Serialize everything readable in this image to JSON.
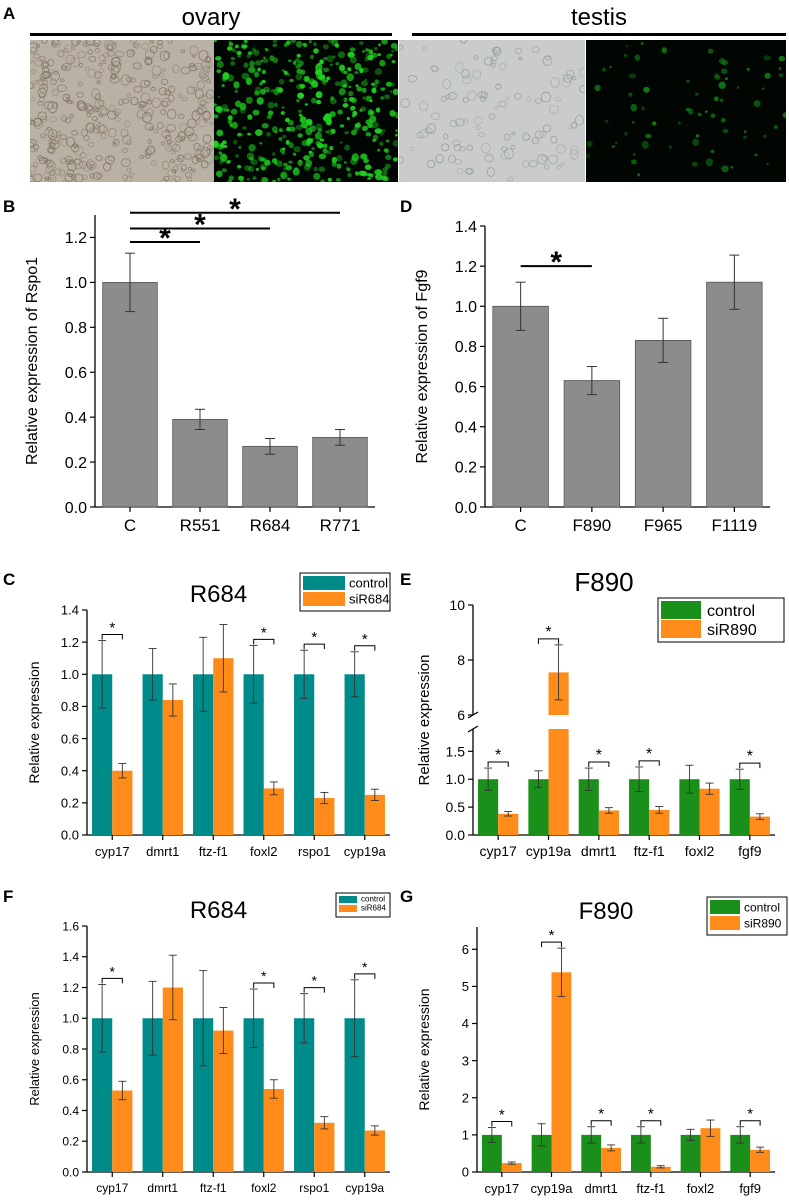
{
  "panel_letters": {
    "A": "A",
    "B": "B",
    "C": "C",
    "D": "D",
    "E": "E",
    "F": "F",
    "G": "G"
  },
  "panel_a": {
    "ovary_label": "ovary",
    "testis_label": "testis",
    "images": [
      {
        "name": "ovary-brightfield",
        "kind": "brightfield",
        "tone": "#b9b1a4"
      },
      {
        "name": "ovary-fluorescence",
        "kind": "fluorescence",
        "tone": "#1fd11f"
      },
      {
        "name": "testis-brightfield",
        "kind": "brightfield",
        "tone": "#c9ccca"
      },
      {
        "name": "testis-fluorescence",
        "kind": "fluorescence",
        "tone": "#0f7a14"
      }
    ]
  },
  "colors": {
    "gray_bar": "#8c8c8c",
    "teal": "#008b8b",
    "orange": "#ff8c1a",
    "green": "#1a8f1a"
  },
  "chart_data": [
    {
      "id": "B",
      "type": "bar",
      "ylabel": "Relative expression of Rspo1",
      "categories": [
        "C",
        "R551",
        "R684",
        "R771"
      ],
      "values": [
        1.0,
        0.39,
        0.27,
        0.31
      ],
      "errors": [
        0.13,
        0.045,
        0.035,
        0.035
      ],
      "ylim": [
        0,
        1.3
      ],
      "yticks": [
        "0.0",
        "0.2",
        "0.4",
        "0.6",
        "0.8",
        "1.0",
        "1.2"
      ],
      "significance": [
        {
          "from": 0,
          "to": 1,
          "level": 1.18,
          "label": "*"
        },
        {
          "from": 0,
          "to": 2,
          "level": 1.24,
          "label": "*"
        },
        {
          "from": 0,
          "to": 3,
          "level": 1.31,
          "label": "*"
        }
      ]
    },
    {
      "id": "D",
      "type": "bar",
      "ylabel": "Relative expression of Fgf9",
      "categories": [
        "C",
        "F890",
        "F965",
        "F1119"
      ],
      "values": [
        1.0,
        0.63,
        0.83,
        1.12
      ],
      "errors": [
        0.12,
        0.07,
        0.11,
        0.135
      ],
      "ylim": [
        0,
        1.4
      ],
      "yticks": [
        "0.0",
        "0.2",
        "0.4",
        "0.6",
        "0.8",
        "1.0",
        "1.2",
        "1.4"
      ],
      "significance": [
        {
          "from": 0,
          "to": 1,
          "level": 1.2,
          "label": "*"
        }
      ]
    },
    {
      "id": "C",
      "type": "grouped-bar",
      "title": "R684",
      "ylabel": "Relative expression",
      "categories": [
        "cyp17",
        "dmrt1",
        "ftz-f1",
        "foxl2",
        "rspo1",
        "cyp19a"
      ],
      "series": [
        {
          "name": "control",
          "values": [
            1.0,
            1.0,
            1.0,
            1.0,
            1.0,
            1.0
          ],
          "errors": [
            0.21,
            0.16,
            0.23,
            0.18,
            0.15,
            0.14
          ]
        },
        {
          "name": "siR684",
          "values": [
            0.4,
            0.84,
            1.1,
            0.29,
            0.23,
            0.25
          ],
          "errors": [
            0.045,
            0.1,
            0.21,
            0.04,
            0.035,
            0.035
          ]
        }
      ],
      "ylim": [
        0,
        1.4
      ],
      "yticks": [
        "0.0",
        "0.2",
        "0.4",
        "0.6",
        "0.8",
        "1.0",
        "1.2",
        "1.4"
      ],
      "stars": [
        0,
        3,
        4,
        5
      ],
      "star_label": "*"
    },
    {
      "id": "E",
      "type": "grouped-bar-broken",
      "title": "F890",
      "ylabel": "Relative expression",
      "categories": [
        "cyp17",
        "cyp19a",
        "dmrt1",
        "ftz-f1",
        "foxl2",
        "fgf9"
      ],
      "series": [
        {
          "name": "control",
          "values": [
            1.0,
            1.0,
            1.0,
            1.0,
            1.0,
            1.0
          ],
          "errors": [
            0.2,
            0.15,
            0.2,
            0.22,
            0.25,
            0.18
          ]
        },
        {
          "name": "siR890",
          "values": [
            0.38,
            7.55,
            0.44,
            0.45,
            0.83,
            0.33
          ],
          "errors": [
            0.04,
            1.0,
            0.05,
            0.06,
            0.1,
            0.05
          ]
        }
      ],
      "lower_ylim": [
        0,
        1.9
      ],
      "upper_ylim": [
        6,
        10
      ],
      "yticks_lower": [
        "0.0",
        "0.5",
        "1.0",
        "1.5"
      ],
      "yticks_upper": [
        "6",
        "8",
        "10"
      ],
      "stars": [
        0,
        1,
        2,
        3,
        5
      ],
      "star_label": "*"
    },
    {
      "id": "F",
      "type": "grouped-bar",
      "title": "R684",
      "ylabel": "Relative expression",
      "categories": [
        "cyp17",
        "dmrt1",
        "ftz-f1",
        "foxl2",
        "rspo1",
        "cyp19a"
      ],
      "series": [
        {
          "name": "control",
          "values": [
            1.0,
            1.0,
            1.0,
            1.0,
            1.0,
            1.0
          ],
          "errors": [
            0.22,
            0.24,
            0.31,
            0.19,
            0.16,
            0.25
          ]
        },
        {
          "name": "siR684",
          "values": [
            0.53,
            1.2,
            0.92,
            0.54,
            0.32,
            0.27
          ],
          "errors": [
            0.06,
            0.21,
            0.15,
            0.06,
            0.04,
            0.03
          ]
        }
      ],
      "ylim": [
        0,
        1.6
      ],
      "yticks": [
        "0.0",
        "0.2",
        "0.4",
        "0.6",
        "0.8",
        "1.0",
        "1.2",
        "1.4",
        "1.6"
      ],
      "stars": [
        0,
        3,
        4,
        5
      ],
      "star_label": "*"
    },
    {
      "id": "G",
      "type": "grouped-bar",
      "title": "F890",
      "ylabel": "Relative expression",
      "categories": [
        "cyp17",
        "cyp19a",
        "dmrt1",
        "ftz-f1",
        "foxl2",
        "fgf9"
      ],
      "series": [
        {
          "name": "control",
          "values": [
            1.0,
            1.0,
            1.0,
            1.0,
            1.0,
            1.0
          ],
          "errors": [
            0.2,
            0.3,
            0.22,
            0.22,
            0.15,
            0.22
          ]
        },
        {
          "name": "siR890",
          "values": [
            0.24,
            5.38,
            0.65,
            0.14,
            1.18,
            0.6
          ],
          "errors": [
            0.03,
            0.65,
            0.08,
            0.03,
            0.22,
            0.07
          ]
        }
      ],
      "ylim": [
        0,
        6.6
      ],
      "yticks": [
        "0",
        "1",
        "2",
        "3",
        "4",
        "5",
        "6"
      ],
      "stars": [
        0,
        1,
        2,
        3,
        5
      ],
      "star_label": "*"
    }
  ]
}
